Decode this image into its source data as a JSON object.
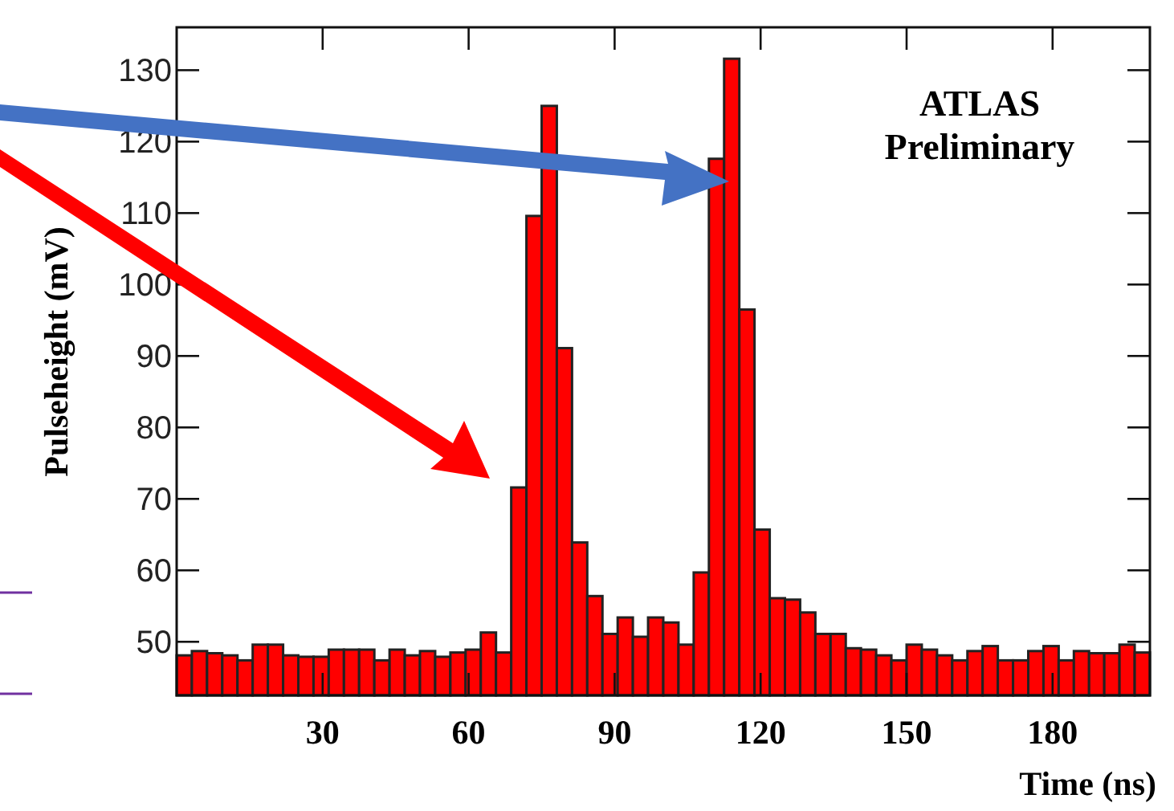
{
  "chart_data": {
    "type": "histogram",
    "xlabel": "Time (ns)",
    "ylabel": "Pulseheight (mV)",
    "annotations": [
      "ATLAS Preliminary"
    ],
    "color": "#ff0000",
    "bins": [
      0,
      3.125,
      6.25,
      9.375,
      12.5,
      15.625,
      18.75,
      21.875,
      25,
      28.125,
      31.25,
      34.375,
      37.5,
      40.625,
      43.75,
      46.875,
      50,
      53.125,
      56.25,
      59.375,
      62.5,
      65.625,
      68.75,
      71.875,
      75,
      78.125,
      81.25,
      84.375,
      87.5,
      90.625,
      93.75,
      96.875,
      100,
      103.125,
      106.25,
      109.375,
      112.5,
      115.625,
      118.75,
      121.875,
      125,
      128.125,
      131.25,
      134.375,
      137.5,
      140.625,
      143.75,
      146.875,
      150,
      153.125,
      156.25,
      159.375,
      162.5,
      165.625,
      168.75,
      171.875,
      175,
      178.125,
      181.25,
      184.375,
      187.5,
      190.625,
      193.75,
      196.875,
      200
    ],
    "values": [
      48.1,
      48.7,
      48.4,
      48.1,
      47.4,
      49.6,
      49.6,
      48.1,
      47.9,
      47.9,
      48.9,
      48.9,
      48.9,
      47.4,
      48.9,
      48.1,
      48.7,
      47.9,
      48.5,
      48.9,
      51.3,
      48.5,
      71.6,
      109.6,
      125,
      91.1,
      63.9,
      56.4,
      51.1,
      53.4,
      50.7,
      53.4,
      52.7,
      49.6,
      59.7,
      117.6,
      131.6,
      96.5,
      65.7,
      56.1,
      55.9,
      54.1,
      51.1,
      51.1,
      49.1,
      48.9,
      48.1,
      47.4,
      49.6,
      48.9,
      48.1,
      47.4,
      48.7,
      49.4,
      47.4,
      47.4,
      48.7,
      49.4,
      47.4,
      48.7,
      48.4,
      48.4,
      49.6,
      48.5
    ],
    "xlim": [
      0,
      200
    ],
    "ylim": [
      42.5,
      136
    ],
    "xticks": [
      30,
      60,
      90,
      120,
      150,
      180
    ],
    "yticks": [
      50,
      60,
      70,
      80,
      90,
      100,
      110,
      120,
      130
    ]
  }
}
